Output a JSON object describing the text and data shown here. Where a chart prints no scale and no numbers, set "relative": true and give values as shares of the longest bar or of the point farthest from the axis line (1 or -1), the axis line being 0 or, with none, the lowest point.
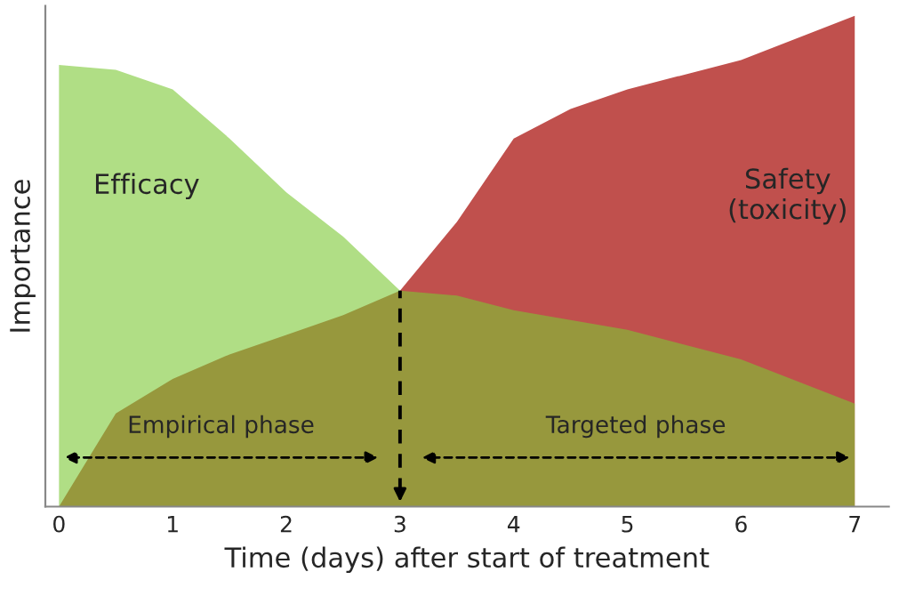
{
  "chart_data": {
    "type": "area",
    "relative": true,
    "xlabel": "Time (days) after start of treatment",
    "ylabel": "Importance",
    "x": [
      0,
      0.5,
      1,
      1.5,
      2,
      2.5,
      3,
      3.5,
      4,
      4.5,
      5,
      6,
      7
    ],
    "xlim": [
      -0.12,
      7.3
    ],
    "xticks": [
      0,
      1,
      2,
      3,
      4,
      5,
      6,
      7
    ],
    "series": [
      {
        "name": "Safety (toxicity)",
        "color": "#c0504d",
        "values": [
          0,
          0.19,
          0.26,
          0.31,
          0.35,
          0.39,
          0.44,
          0.58,
          0.75,
          0.81,
          0.85,
          0.91,
          1
        ]
      },
      {
        "name": "Efficacy",
        "color": "#7bc834",
        "values": [
          0.9,
          0.89,
          0.85,
          0.75,
          0.64,
          0.55,
          0.44,
          0.43,
          0.4,
          0.38,
          0.36,
          0.3,
          0.21
        ]
      }
    ],
    "ref_lines": [
      {
        "axis": "x",
        "value": 3,
        "line_style": "dashed",
        "color": "#000000"
      }
    ],
    "annotations": [
      "Empirical phase",
      "Targeted phase"
    ],
    "grid": false
  }
}
